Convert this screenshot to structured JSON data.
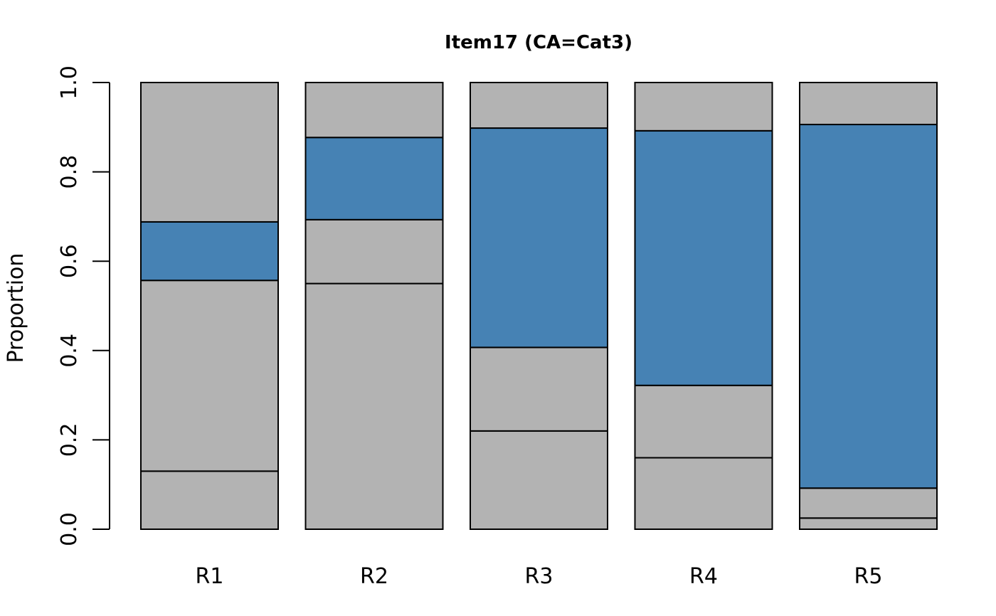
{
  "chart_data": {
    "type": "bar",
    "stacked": true,
    "title": "Item17 (CA=Cat3)",
    "xlabel": "",
    "ylabel": "Proportion",
    "ylim": [
      0,
      1
    ],
    "yticks": [
      "0.0",
      "0.2",
      "0.4",
      "0.6",
      "0.8",
      "1.0"
    ],
    "categories": [
      "R1",
      "R2",
      "R3",
      "R4",
      "R5"
    ],
    "correct_answer": "Cat3",
    "colors": {
      "other": "#b3b3b3",
      "correct": "#4682b4",
      "border": "#000000"
    },
    "series": [
      {
        "values": [
          0.13,
          0.55,
          0.22,
          0.16,
          0.025
        ]
      },
      {
        "values": [
          0.427,
          0.143,
          0.187,
          0.162,
          0.067
        ]
      },
      {
        "values": [
          0.131,
          0.184,
          0.491,
          0.57,
          0.814
        ]
      },
      {
        "values": [
          0.312,
          0.123,
          0.102,
          0.108,
          0.094
        ]
      }
    ],
    "highlight_series_index": 2
  }
}
